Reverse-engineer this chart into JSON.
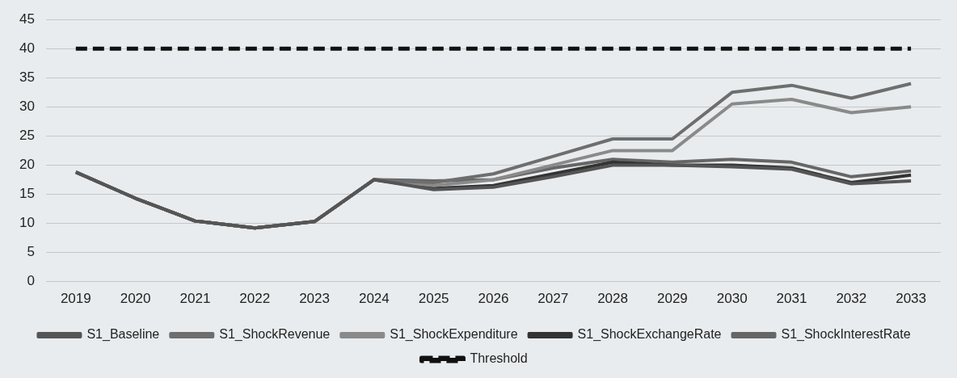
{
  "chart_data": {
    "type": "line",
    "categories": [
      "2019",
      "2020",
      "2021",
      "2022",
      "2023",
      "2024",
      "2025",
      "2026",
      "2027",
      "2028",
      "2029",
      "2030",
      "2031",
      "2032",
      "2033"
    ],
    "series": [
      {
        "name": "S1_Baseline",
        "color": "#555555",
        "values": [
          18.8,
          14.3,
          10.4,
          9.2,
          10.3,
          17.5,
          15.8,
          16.2,
          18,
          20,
          20,
          19.7,
          19.3,
          16.8,
          17.3
        ]
      },
      {
        "name": "S1_ShockRevenue",
        "color": "#6e6e6e",
        "values": [
          18.8,
          14.3,
          10.4,
          9.2,
          10.3,
          17.5,
          17,
          18.5,
          21.5,
          24.5,
          24.5,
          32.5,
          33.7,
          31.5,
          34
        ]
      },
      {
        "name": "S1_ShockExpenditure",
        "color": "#8a8a8a",
        "values": [
          18.8,
          14.3,
          10.4,
          9.2,
          10.3,
          17.5,
          16.5,
          17.5,
          20,
          22.5,
          22.5,
          30.5,
          31.3,
          29,
          30
        ]
      },
      {
        "name": "S1_ShockExchangeRate",
        "color": "#333333",
        "values": [
          18.8,
          14.3,
          10.4,
          9.2,
          10.3,
          17.5,
          16,
          16.5,
          18.5,
          20.5,
          20,
          20,
          19.5,
          17,
          18.3
        ]
      },
      {
        "name": "S1_ShockInterestRate",
        "color": "#666666",
        "values": [
          18.8,
          14.3,
          10.4,
          9.2,
          10.3,
          17.5,
          17.3,
          17.5,
          19.5,
          21,
          20.5,
          21,
          20.5,
          18,
          19
        ]
      },
      {
        "name": "Threshold",
        "color": "#111111",
        "line_style": "dashed",
        "values": [
          40,
          40,
          40,
          40,
          40,
          40,
          40,
          40,
          40,
          40,
          40,
          40,
          40,
          40,
          40
        ]
      }
    ],
    "ylim": [
      0,
      45
    ],
    "yticks": [
      0,
      5,
      10,
      15,
      20,
      25,
      30,
      35,
      40,
      45
    ],
    "grid": "y",
    "legend": "bottom",
    "marker": "none",
    "line_style": "solid"
  }
}
